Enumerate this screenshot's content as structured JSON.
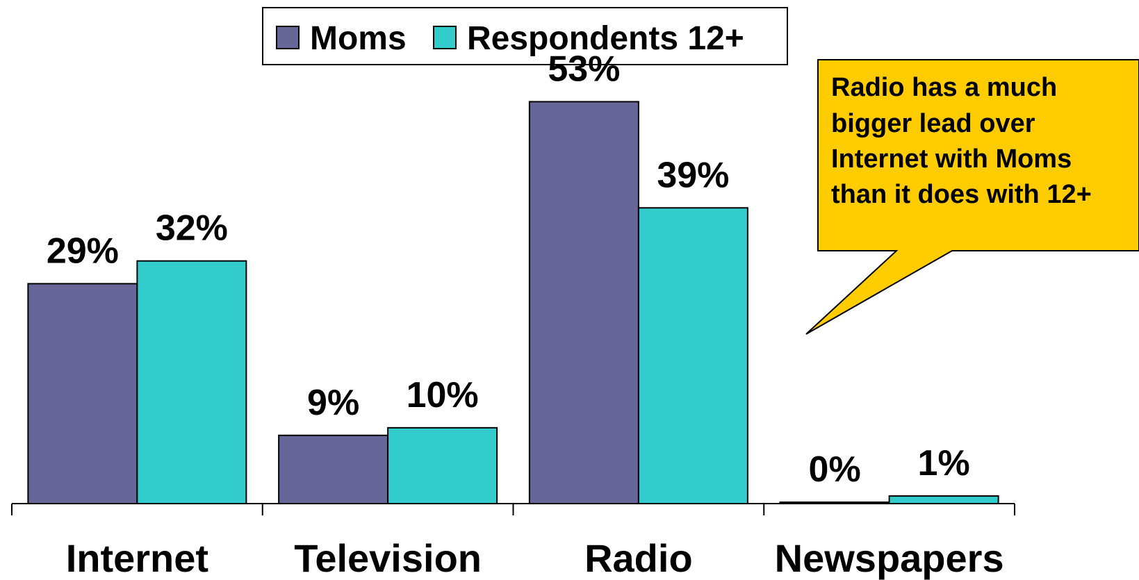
{
  "chart_data": {
    "type": "bar",
    "categories": [
      "Internet",
      "Television",
      "Radio",
      "Newspapers"
    ],
    "series": [
      {
        "name": "Moms",
        "values": [
          29,
          9,
          53,
          0
        ],
        "labels": [
          "29%",
          "9%",
          "53%",
          "0%"
        ],
        "color": "#666699"
      },
      {
        "name": "Respondents 12+",
        "values": [
          32,
          10,
          39,
          1
        ],
        "labels": [
          "32%",
          "10%",
          "39%",
          "1%"
        ],
        "color": "#33CCCC"
      }
    ],
    "ylim": [
      0,
      60
    ],
    "grid": false,
    "legend_position": "top",
    "annotation": {
      "lines": [
        "Radio has a much",
        "bigger lead over",
        "Internet with Moms",
        "than it does with 12+"
      ],
      "fill": "#FFCC00"
    }
  }
}
